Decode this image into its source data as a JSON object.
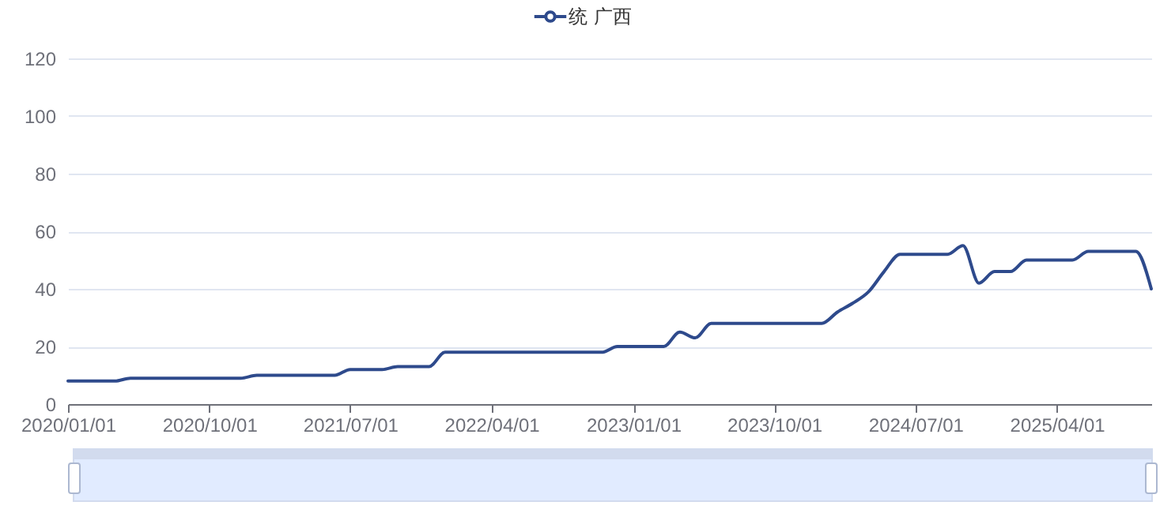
{
  "chart_data": {
    "type": "line",
    "legend": "top",
    "grid": "y",
    "marker": "none",
    "x": [
      "2020-01",
      "2020-02",
      "2020-03",
      "2020-04",
      "2020-05",
      "2020-06",
      "2020-07",
      "2020-08",
      "2020-09",
      "2020-10",
      "2020-11",
      "2020-12",
      "2021-01",
      "2021-02",
      "2021-03",
      "2021-04",
      "2021-05",
      "2021-06",
      "2021-07",
      "2021-08",
      "2021-09",
      "2021-10",
      "2021-11",
      "2021-12",
      "2022-01",
      "2022-02",
      "2022-03",
      "2022-04",
      "2022-05",
      "2022-06",
      "2022-07",
      "2022-08",
      "2022-09",
      "2022-10",
      "2022-11",
      "2022-12",
      "2023-01",
      "2023-02",
      "2023-03",
      "2023-04",
      "2023-05",
      "2023-06",
      "2023-07",
      "2023-08",
      "2023-09",
      "2023-10",
      "2023-11",
      "2023-12",
      "2024-01",
      "2024-02",
      "2024-03",
      "2024-04",
      "2024-05",
      "2024-06",
      "2024-07",
      "2024-08",
      "2024-09",
      "2024-10",
      "2024-11",
      "2024-12",
      "2025-01",
      "2025-02",
      "2025-03",
      "2025-04",
      "2025-05",
      "2025-06",
      "2025-07",
      "2025-08",
      "2025-09",
      "2025-10"
    ],
    "series": [
      {
        "name": "统 广西",
        "color": "#2e4a8c",
        "values": [
          8,
          8,
          8,
          8,
          9,
          9,
          9,
          9,
          9,
          9,
          9,
          9,
          10,
          10,
          10,
          10,
          10,
          10,
          12,
          12,
          12,
          13,
          13,
          13,
          18,
          18,
          18,
          18,
          18,
          18,
          18,
          18,
          18,
          18,
          18,
          20,
          20,
          20,
          20,
          25,
          23,
          28,
          28,
          28,
          28,
          28,
          28,
          28,
          28,
          32,
          35,
          39,
          46,
          52,
          52,
          52,
          52,
          55,
          42,
          46,
          46,
          50,
          50,
          50,
          50,
          53,
          53,
          53,
          53,
          40
        ]
      }
    ],
    "xlim": [
      "2020-01-01",
      "2025-10-01"
    ],
    "xticks": [
      {
        "value": "2020-01-01",
        "label": "2020/01/01"
      },
      {
        "value": "2020-10-01",
        "label": "2020/10/01"
      },
      {
        "value": "2021-07-01",
        "label": "2021/07/01"
      },
      {
        "value": "2022-04-01",
        "label": "2022/04/01"
      },
      {
        "value": "2023-01-01",
        "label": "2023/01/01"
      },
      {
        "value": "2023-10-01",
        "label": "2023/10/01"
      },
      {
        "value": "2024-07-01",
        "label": "2024/07/01"
      },
      {
        "value": "2025-04-01",
        "label": "2025/04/01"
      }
    ],
    "ylim": [
      0,
      120
    ],
    "yticks": [
      0,
      20,
      40,
      60,
      80,
      100,
      120
    ]
  }
}
